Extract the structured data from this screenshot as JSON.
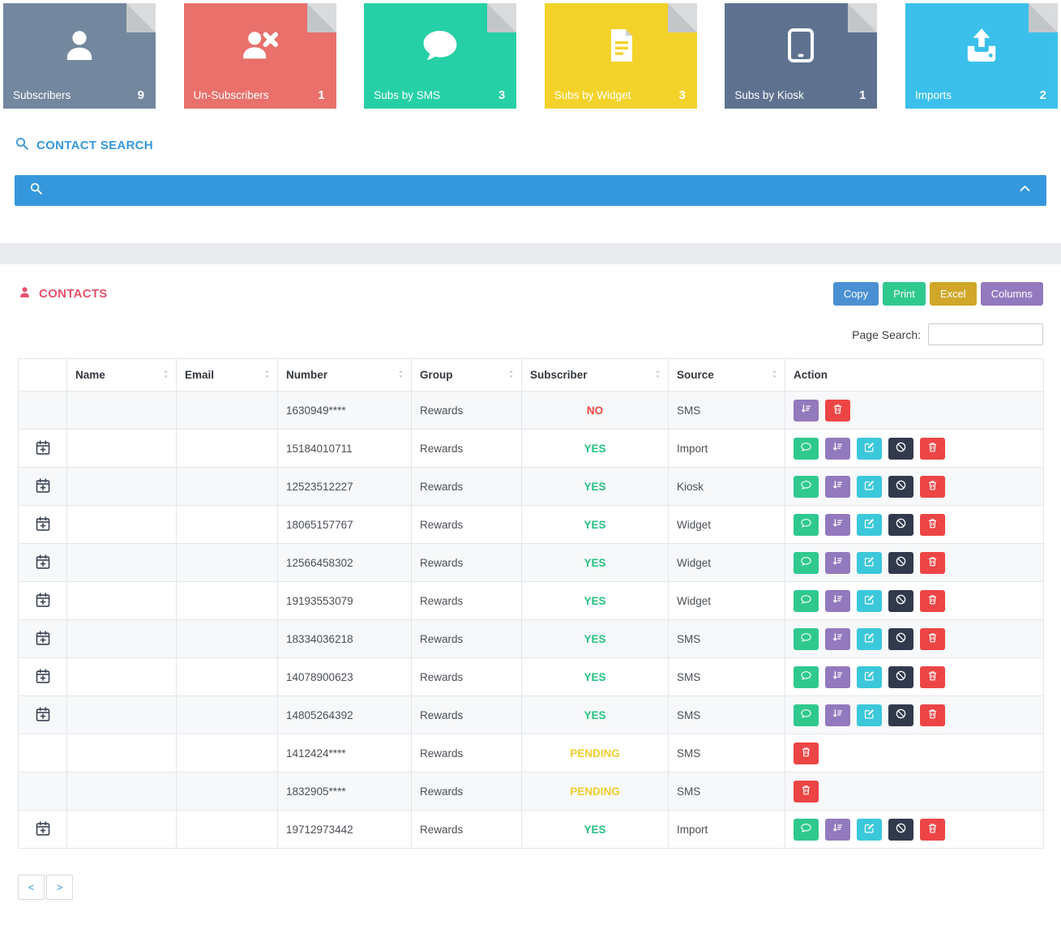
{
  "cards": [
    {
      "label": "Subscribers",
      "count": "9",
      "icon": "user-icon",
      "color": "#73879e"
    },
    {
      "label": "Un-Subscribers",
      "count": "1",
      "icon": "user-x-icon",
      "color": "#e9706b"
    },
    {
      "label": "Subs by SMS",
      "count": "3",
      "icon": "chat-icon",
      "color": "#26d0a6"
    },
    {
      "label": "Subs by Widget",
      "count": "3",
      "icon": "document-icon",
      "color": "#f3d32a"
    },
    {
      "label": "Subs by Kiosk",
      "count": "1",
      "icon": "tablet-icon",
      "color": "#5e7290"
    },
    {
      "label": "Imports",
      "count": "2",
      "icon": "upload-icon",
      "color": "#3ac0ea"
    }
  ],
  "contact_search": {
    "title": "CONTACT SEARCH"
  },
  "contacts": {
    "title": "CONTACTS",
    "toolbar_buttons": [
      {
        "label": "Copy",
        "color": "#4a90d2"
      },
      {
        "label": "Print",
        "color": "#2fc98e"
      },
      {
        "label": "Excel",
        "color": "#d0a728"
      },
      {
        "label": "Columns",
        "color": "#9379bd"
      }
    ],
    "page_search_label": "Page Search:",
    "page_search_value": ""
  },
  "table": {
    "headers": [
      "",
      "Name",
      "Email",
      "Number",
      "Group",
      "Subscriber",
      "Source",
      "Action"
    ],
    "sortable": [
      false,
      true,
      true,
      true,
      true,
      true,
      true,
      false
    ],
    "status_colors": {
      "YES": "#26c281",
      "NO": "#f0483e",
      "PENDING": "#f2cd2e"
    },
    "action_colors": {
      "chat": "#2fc98e",
      "sort": "#9379bd",
      "edit": "#3bc8da",
      "ban": "#313a4d",
      "trash": "#ed4545"
    },
    "rows": [
      {
        "calendar": false,
        "name": "",
        "email": "",
        "number": "1630949****",
        "group": "Rewards",
        "subscriber": "NO",
        "source": "SMS",
        "actions": [
          "sort",
          "trash"
        ]
      },
      {
        "calendar": true,
        "name": "",
        "email": "",
        "number": "15184010711",
        "group": "Rewards",
        "subscriber": "YES",
        "source": "Import",
        "actions": [
          "chat",
          "sort",
          "edit",
          "ban",
          "trash"
        ]
      },
      {
        "calendar": true,
        "name": "",
        "email": "",
        "number": "12523512227",
        "group": "Rewards",
        "subscriber": "YES",
        "source": "Kiosk",
        "actions": [
          "chat",
          "sort",
          "edit",
          "ban",
          "trash"
        ]
      },
      {
        "calendar": true,
        "name": "",
        "email": "",
        "number": "18065157767",
        "group": "Rewards",
        "subscriber": "YES",
        "source": "Widget",
        "actions": [
          "chat",
          "sort",
          "edit",
          "ban",
          "trash"
        ]
      },
      {
        "calendar": true,
        "name": "",
        "email": "",
        "number": "12566458302",
        "group": "Rewards",
        "subscriber": "YES",
        "source": "Widget",
        "actions": [
          "chat",
          "sort",
          "edit",
          "ban",
          "trash"
        ]
      },
      {
        "calendar": true,
        "name": "",
        "email": "",
        "number": "19193553079",
        "group": "Rewards",
        "subscriber": "YES",
        "source": "Widget",
        "actions": [
          "chat",
          "sort",
          "edit",
          "ban",
          "trash"
        ]
      },
      {
        "calendar": true,
        "name": "",
        "email": "",
        "number": "18334036218",
        "group": "Rewards",
        "subscriber": "YES",
        "source": "SMS",
        "actions": [
          "chat",
          "sort",
          "edit",
          "ban",
          "trash"
        ]
      },
      {
        "calendar": true,
        "name": "",
        "email": "",
        "number": "14078900623",
        "group": "Rewards",
        "subscriber": "YES",
        "source": "SMS",
        "actions": [
          "chat",
          "sort",
          "edit",
          "ban",
          "trash"
        ]
      },
      {
        "calendar": true,
        "name": "",
        "email": "",
        "number": "14805264392",
        "group": "Rewards",
        "subscriber": "YES",
        "source": "SMS",
        "actions": [
          "chat",
          "sort",
          "edit",
          "ban",
          "trash"
        ]
      },
      {
        "calendar": false,
        "name": "",
        "email": "",
        "number": "1412424****",
        "group": "Rewards",
        "subscriber": "PENDING",
        "source": "SMS",
        "actions": [
          "trash"
        ]
      },
      {
        "calendar": false,
        "name": "",
        "email": "",
        "number": "1832905****",
        "group": "Rewards",
        "subscriber": "PENDING",
        "source": "SMS",
        "actions": [
          "trash"
        ]
      },
      {
        "calendar": true,
        "name": "",
        "email": "",
        "number": "19712973442",
        "group": "Rewards",
        "subscriber": "YES",
        "source": "Import",
        "actions": [
          "chat",
          "sort",
          "edit",
          "ban",
          "trash"
        ]
      }
    ]
  },
  "pagination": {
    "prev": "<",
    "next": ">"
  }
}
